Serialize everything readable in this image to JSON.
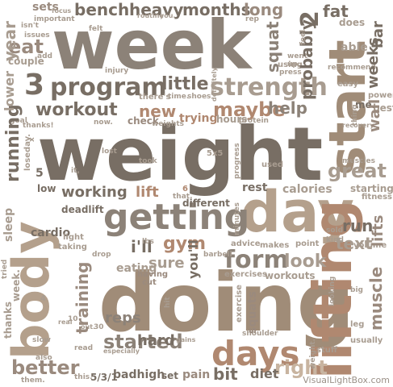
{
  "cloud": {
    "words": {
      "week": "week",
      "weight": "weight",
      "doing": "doing",
      "body": "body",
      "day": "day",
      "start": "start",
      "lifting": "lifting",
      "getting": "getting",
      "days": "days",
      "program": "program",
      "strength": "strength",
      "form": "form",
      "started": "started",
      "workout": "workout",
      "training": "training",
      "maybe": "maybe",
      "better": "better",
      "squat": "squat",
      "bench": "bench",
      "heavy": "heavy",
      "months": "months",
      "long": "long",
      "fat": "fat",
      "2": "2",
      "3": "3",
      "sets": "sets",
      "year": "year",
      "eat": "eat",
      "running": "running",
      "great": "great",
      "little": "little",
      "new": "new",
      "help": "help",
      "probably": "probably",
      "working": "working",
      "lift": "lift",
      "gym": "gym",
      "i'll": "i'll",
      "sure": "sure",
      "look": "look",
      "reps": "reps",
      "hard": "hard",
      "right": "right",
      "bit": "bit",
      "pain": "pain",
      "diet": "diet",
      "text": "text",
      "run": "run",
      "muscle": "muscle",
      "lifts": "lifts",
      "wall": "wall",
      "weeks": "weeks",
      "bar": "bar",
      "calories": "calories",
      "rest": "rest",
      "eating": "eating",
      "you'll": "you'll",
      "cardio": "cardio",
      "able": "able",
      "lower": "lower",
      "low": "low",
      "sleep": "sleep",
      "squats": "squats",
      "5/3/1": "5/3/1",
      "badhigh": "badhigh",
      "set": "set",
      "thanks": "thanks",
      "workouts": "workouts",
      "deadlift": "deadlift",
      "different": "different",
      "trying": "trying",
      "check": "check",
      "best": "best",
      "does": "does",
      "couple": "couple",
      "add": "add",
      "5": "5",
      "6": "6",
      "shoulder": "shoulder",
      "exercise": "exercise",
      "starting": "starting",
      "easy": "easy",
      "me": "me.",
      "rep": "rep",
      "hours": "hours",
      "used": "used",
      "having": "having",
      "cut": "cut",
      "taking": "taking",
      "light": "light",
      "point": "point",
      "advice": "advice",
      "makes": "makes",
      "exercises": "exercises",
      "feel": "feel",
      "thing": "thing",
      "focus": "focus",
      "routine": "routine",
      "you": "you.",
      "injury": "injury",
      "important": "important",
      "isnt": "isn't",
      "issues": "issues",
      "fitness": "fitness",
      "leg": "leg",
      "power": "power",
      "usually": "usually",
      "look2": "looking",
      "volume": "volume",
      "recommend": "recommend",
      "weight2": "weights",
      "protein": "protein",
      "definitely": "definitely",
      "progress": "progress",
      "minutes": "minutes",
      "barbell": "barbell",
      "especially": "especially",
      "read": "read",
      "slow": "slow",
      "also": "also",
      "them": "them.",
      "this": "this.",
      "real": "real",
      "out": "out.",
      "10": "10",
      "30": "30",
      "4": "4",
      "x": "x",
      "5x5": "5x5",
      "lbs": "lbs",
      "took": "took",
      "lost": "lost",
      "drop": "drop",
      "weight3": "weight.",
      "thats": "that.",
      "its": "it,",
      "there's": "there's",
      "time": "time.",
      "shoes": "shoes",
      "goal": "goal",
      "now": "now.",
      "kind": "kind",
      "sold": "sold",
      "went": "went",
      "up": "up.",
      "using": "using",
      "press": "press",
      "stuff": "stuff",
      "gains": "gains",
      "big": "big",
      "hit": "hit",
      "tried": "tried",
      "week2": "week.",
      "felt": "felt",
      "recovery": "recovery",
      "muscles": "muscles",
      "loseday": "loseday.",
      "thanks2": "thanks!"
    },
    "watermark": "VisualLightBox.com"
  }
}
